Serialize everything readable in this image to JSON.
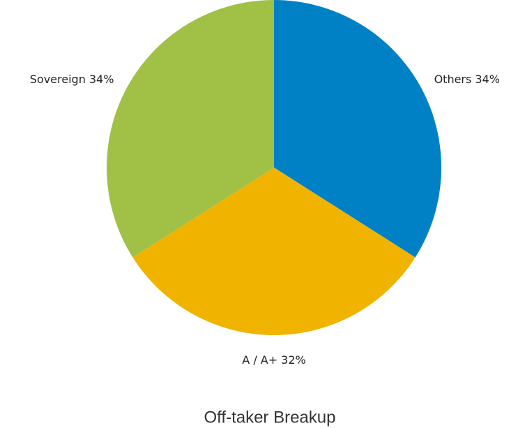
{
  "chart_data": {
    "type": "pie",
    "title": "Off-taker Breakup",
    "categories": [
      "Others",
      "A / A+",
      "Sovereign"
    ],
    "values": [
      34,
      32,
      34
    ],
    "value_labels": [
      "34%",
      "32%",
      "34%"
    ],
    "colors": [
      "#0081c6",
      "#f0b400",
      "#a0c046"
    ]
  }
}
